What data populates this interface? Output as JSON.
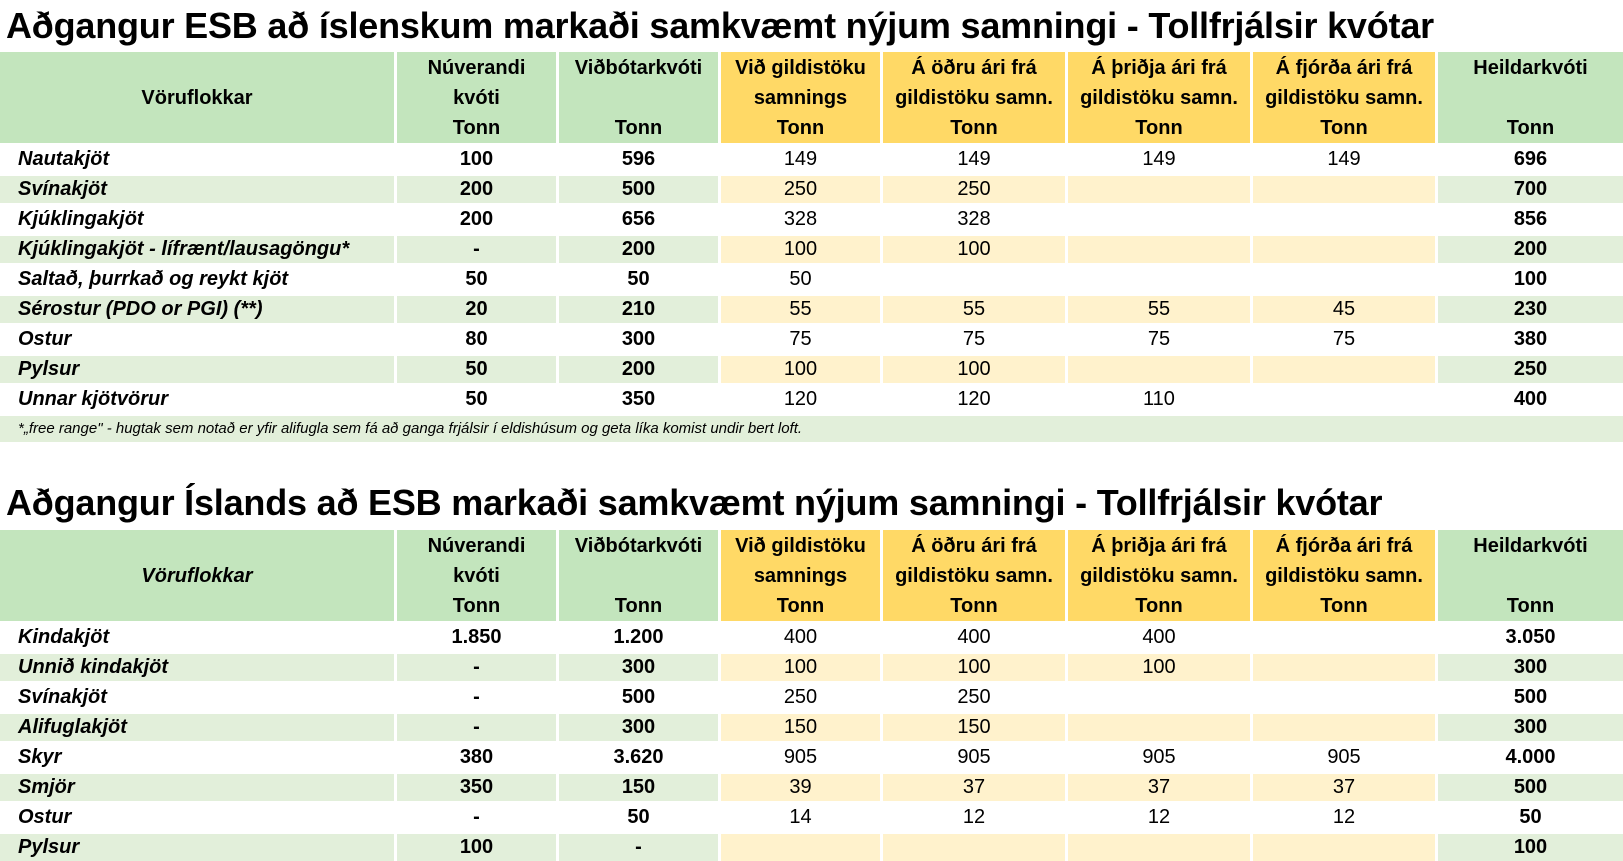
{
  "section1": {
    "title": "Aðgangur ESB að íslenskum markaði samkvæmt nýjum samningi - Tollfrjálsir kvótar",
    "headers": [
      [
        "Vöruflokkar"
      ],
      [
        "Núverandi",
        "kvóti",
        "Tonn"
      ],
      [
        "Viðbótarkvóti",
        "",
        "Tonn"
      ],
      [
        "Við gildistöku",
        "samnings",
        "Tonn"
      ],
      [
        "Á öðru ári frá",
        "gildistöku samn.",
        "Tonn"
      ],
      [
        "Á þriðja ári frá",
        "gildistöku samn.",
        "Tonn"
      ],
      [
        "Á fjórða ári frá",
        "gildistöku samn.",
        "Tonn"
      ],
      [
        "Heildarkvóti",
        "",
        "Tonn"
      ]
    ],
    "rows": [
      [
        "Nautakjöt",
        "100",
        "596",
        "149",
        "149",
        "149",
        "149",
        "696"
      ],
      [
        "Svínakjöt",
        "200",
        "500",
        "250",
        "250",
        "",
        "",
        "700"
      ],
      [
        "Kjúklingakjöt",
        "200",
        "656",
        "328",
        "328",
        "",
        "",
        "856"
      ],
      [
        "Kjúklingakjöt - lífrænt/lausagöngu*",
        "-",
        "200",
        "100",
        "100",
        "",
        "",
        "200"
      ],
      [
        "Saltað, þurrkað og reykt kjöt",
        "50",
        "50",
        "50",
        "",
        "",
        "",
        "100"
      ],
      [
        "Sérostur (PDO or PGI) (**)",
        "20",
        "210",
        "55",
        "55",
        "55",
        "45",
        "230"
      ],
      [
        "Ostur",
        "80",
        "300",
        "75",
        "75",
        "75",
        "75",
        "380"
      ],
      [
        "Pylsur",
        "50",
        "200",
        "100",
        "100",
        "",
        "",
        "250"
      ],
      [
        "Unnar kjötvörur",
        "50",
        "350",
        "120",
        "120",
        "110",
        "",
        "400"
      ]
    ],
    "footnote": "*„free range\" - hugtak sem notað er yfir alifugla sem fá að ganga frjálsir í eldishúsum og geta líka komist undir bert loft."
  },
  "section2": {
    "title": "Aðgangur Íslands að ESB markaði samkvæmt nýjum samningi - Tollfrjálsir kvótar",
    "headers": [
      [
        "Vöruflokkar"
      ],
      [
        "Núverandi",
        "kvóti",
        "Tonn"
      ],
      [
        "Viðbótarkvóti",
        "",
        "Tonn"
      ],
      [
        "Við gildistöku",
        "samnings",
        "Tonn"
      ],
      [
        "Á öðru ári frá",
        "gildistöku samn.",
        "Tonn"
      ],
      [
        "Á þriðja ári frá",
        "gildistöku samn.",
        "Tonn"
      ],
      [
        "Á fjórða ári frá",
        "gildistöku samn.",
        "Tonn"
      ],
      [
        "Heildarkvóti",
        "",
        "Tonn"
      ]
    ],
    "rows": [
      [
        "Kindakjöt",
        "1.850",
        "1.200",
        "400",
        "400",
        "400",
        "",
        "3.050"
      ],
      [
        "Unnið kindakjöt",
        "-",
        "300",
        "100",
        "100",
        "100",
        "",
        "300"
      ],
      [
        "Svínakjöt",
        "-",
        "500",
        "250",
        "250",
        "",
        "",
        "500"
      ],
      [
        "Alifuglakjöt",
        "-",
        "300",
        "150",
        "150",
        "",
        "",
        "300"
      ],
      [
        "Skyr",
        "380",
        "3.620",
        "905",
        "905",
        "905",
        "905",
        "4.000"
      ],
      [
        "Smjör",
        "350",
        "150",
        "39",
        "37",
        "37",
        "37",
        "500"
      ],
      [
        "Ostur",
        "-",
        "50",
        "14",
        "12",
        "12",
        "12",
        "50"
      ],
      [
        "Pylsur",
        "100",
        "-",
        "",
        "",
        "",
        "",
        "100"
      ]
    ]
  }
}
